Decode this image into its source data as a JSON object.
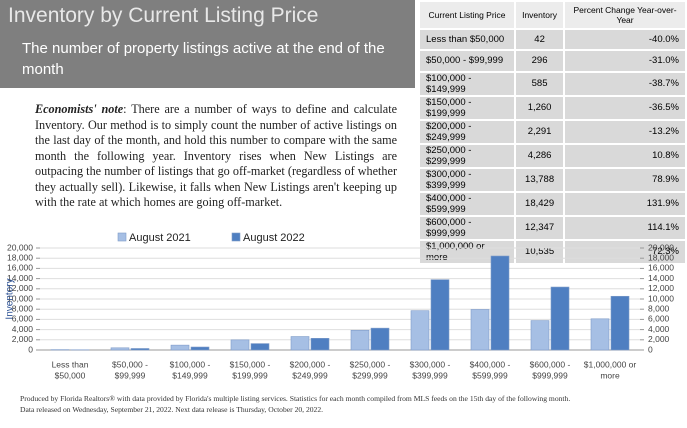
{
  "header": {
    "title": "Inventory by Current Listing Price",
    "subtitle": "The number of property listings active at the end of the month"
  },
  "note": {
    "label": "Economists' note",
    "text": ": There are a number of ways to define and calculate Inventory. Our method is to simply count the number of active listings on the last day of the month, and hold this number to compare with the same month the following year. Inventory rises when New Listings are outpacing the number of listings that go off-market (regardless of whether they actually sell). Likewise, it falls when New Listings aren't keeping up with the rate at which homes are going off-market."
  },
  "table": {
    "headers": [
      "Current Listing Price",
      "Inventory",
      "Percent Change Year-over-Year"
    ],
    "rows": [
      [
        "Less than $50,000",
        "42",
        "-40.0%"
      ],
      [
        "$50,000 - $99,999",
        "296",
        "-31.0%"
      ],
      [
        "$100,000 - $149,999",
        "585",
        "-38.7%"
      ],
      [
        "$150,000 - $199,999",
        "1,260",
        "-36.5%"
      ],
      [
        "$200,000 - $249,999",
        "2,291",
        "-13.2%"
      ],
      [
        "$250,000 - $299,999",
        "4,286",
        "10.8%"
      ],
      [
        "$300,000 - $399,999",
        "13,788",
        "78.9%"
      ],
      [
        "$400,000 - $599,999",
        "18,429",
        "131.9%"
      ],
      [
        "$600,000 - $999,999",
        "12,347",
        "114.1%"
      ],
      [
        "$1,000,000 or more",
        "10,535",
        "72.3%"
      ]
    ]
  },
  "chart_data": {
    "type": "bar",
    "y_label": "Inventory",
    "categories": [
      [
        "Less than",
        "$50,000"
      ],
      [
        "$50,000 -",
        "$99,999"
      ],
      [
        "$100,000 -",
        "$149,999"
      ],
      [
        "$150,000 -",
        "$199,999"
      ],
      [
        "$200,000 -",
        "$249,999"
      ],
      [
        "$250,000 -",
        "$299,999"
      ],
      [
        "$300,000 -",
        "$399,999"
      ],
      [
        "$400,000 -",
        "$599,999"
      ],
      [
        "$600,000 -",
        "$999,999"
      ],
      [
        "$1,000,000 or",
        "more"
      ]
    ],
    "series": [
      {
        "name": "August 2021",
        "color": "#a6bfe4",
        "values": [
          70,
          429,
          954,
          1984,
          2639,
          3868,
          7707,
          7947,
          5767,
          6114
        ]
      },
      {
        "name": "August 2022",
        "color": "#4f7fc1",
        "values": [
          42,
          296,
          585,
          1260,
          2291,
          4286,
          13788,
          18429,
          12347,
          10535
        ]
      }
    ],
    "ylim": [
      0,
      20000
    ],
    "yticks": [
      0,
      {
        "value": 2000,
        "label": "2,000"
      },
      {
        "value": 4000,
        "label": "4,000"
      },
      {
        "value": 6000,
        "label": "6,000"
      },
      {
        "value": 8000,
        "label": "8,000"
      },
      {
        "value": 10000,
        "label": "10,000"
      },
      {
        "value": 12000,
        "label": "12,000"
      },
      {
        "value": 14000,
        "label": "14,000"
      },
      {
        "value": 16000,
        "label": "16,000"
      },
      {
        "value": 18000,
        "label": "18,000"
      },
      {
        "value": 20000,
        "label": "20,000"
      }
    ],
    "grid": true
  },
  "footer": [
    "Produced by Florida Realtors® with data provided by Florida's multiple listing services. Statistics for each month compiled from MLS feeds on the 15th day of the following month.",
    "Data released on Wednesday, September 21, 2022. Next data release is Thursday, October 20, 2022."
  ]
}
